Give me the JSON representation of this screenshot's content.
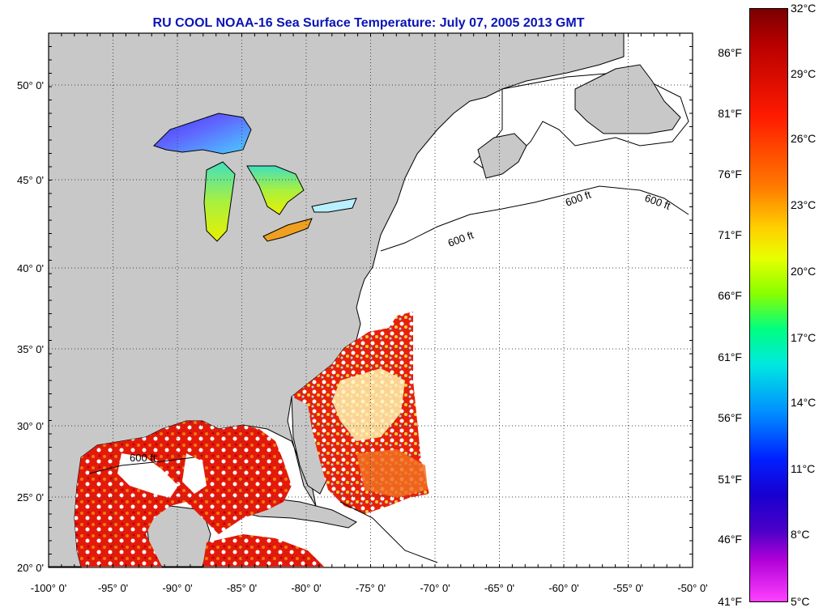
{
  "title": "RU COOL  NOAA-16  Sea Surface Temperature:  July 07, 2005 2013 GMT",
  "map": {
    "lon_ticks": [
      "-100° 0'",
      "-95° 0'",
      "-90° 0'",
      "-85° 0'",
      "-80° 0'",
      "-75° 0'",
      "-70° 0'",
      "-65° 0'",
      "-60° 0'",
      "-55° 0'",
      "-50° 0'"
    ],
    "lat_ticks": [
      "50° 0'",
      "45° 0'",
      "40° 0'",
      "35° 0'",
      "30° 0'",
      "25° 0'",
      "20° 0'"
    ],
    "contour_labels": [
      "600 ft",
      "600 ft",
      "600 ft",
      "600 ft"
    ]
  },
  "colorbar": {
    "celsius": [
      "32°C",
      "29°C",
      "26°C",
      "23°C",
      "20°C",
      "17°C",
      "14°C",
      "11°C",
      "8°C",
      "5°C"
    ],
    "fahrenheit": [
      "86°F",
      "81°F",
      "76°F",
      "71°F",
      "66°F",
      "61°F",
      "56°F",
      "51°F",
      "46°F",
      "41°F"
    ]
  }
}
